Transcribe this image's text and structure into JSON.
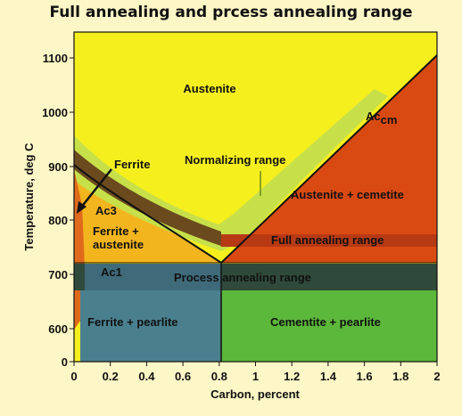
{
  "title": "Full annealing and prcess annealing range",
  "axes": {
    "x_label": "Carbon, percent",
    "y_label": "Temperature, deg C",
    "x_ticks": [
      "0",
      "0.2",
      "0.4",
      "0.6",
      "0.8",
      "1",
      "1.2",
      "1.4",
      "1.6",
      "1.8",
      "2"
    ],
    "y_ticks": [
      "0",
      "600",
      "700",
      "800",
      "900",
      "1000",
      "1100"
    ],
    "x_range": [
      0,
      2
    ],
    "y_range_note": "broken axis: 0 shown below 600"
  },
  "labels": {
    "austenite": "Austenite",
    "ferrite": "Ferrite",
    "normalizing": "Normalizing  range",
    "acm_main": "Ac",
    "acm_sub": "cm",
    "ac3": "Ac3",
    "ferrite_austenite_1": "Ferrite +",
    "ferrite_austenite_2": "austenite",
    "austenite_cemetite": "Austenite + cemetite",
    "full_annealing": "Full annealing range",
    "ac1": "Ac1",
    "process_annealing": "Process annealing range",
    "ferrite_pearlite": "Ferrite + pearlite",
    "cementite_pearlite": "Cementite + pearlite"
  },
  "colors": {
    "background": "#fdf6c6",
    "austenite": "#f5ef1e",
    "austenite_cemetite": "#d94a12",
    "ferrite_austenite": "#f3b51e",
    "normalizing_band": "#c7e04a",
    "full_annealing_band": "#6b4a1e",
    "full_annealing_band_right": "#b83a14",
    "process_annealing_band": "#2f4a3a",
    "ferrite_pearlite": "#4a7f8e",
    "cementite_pearlite": "#5cb83a",
    "ferrite_sliver": "#e06a1c"
  }
}
